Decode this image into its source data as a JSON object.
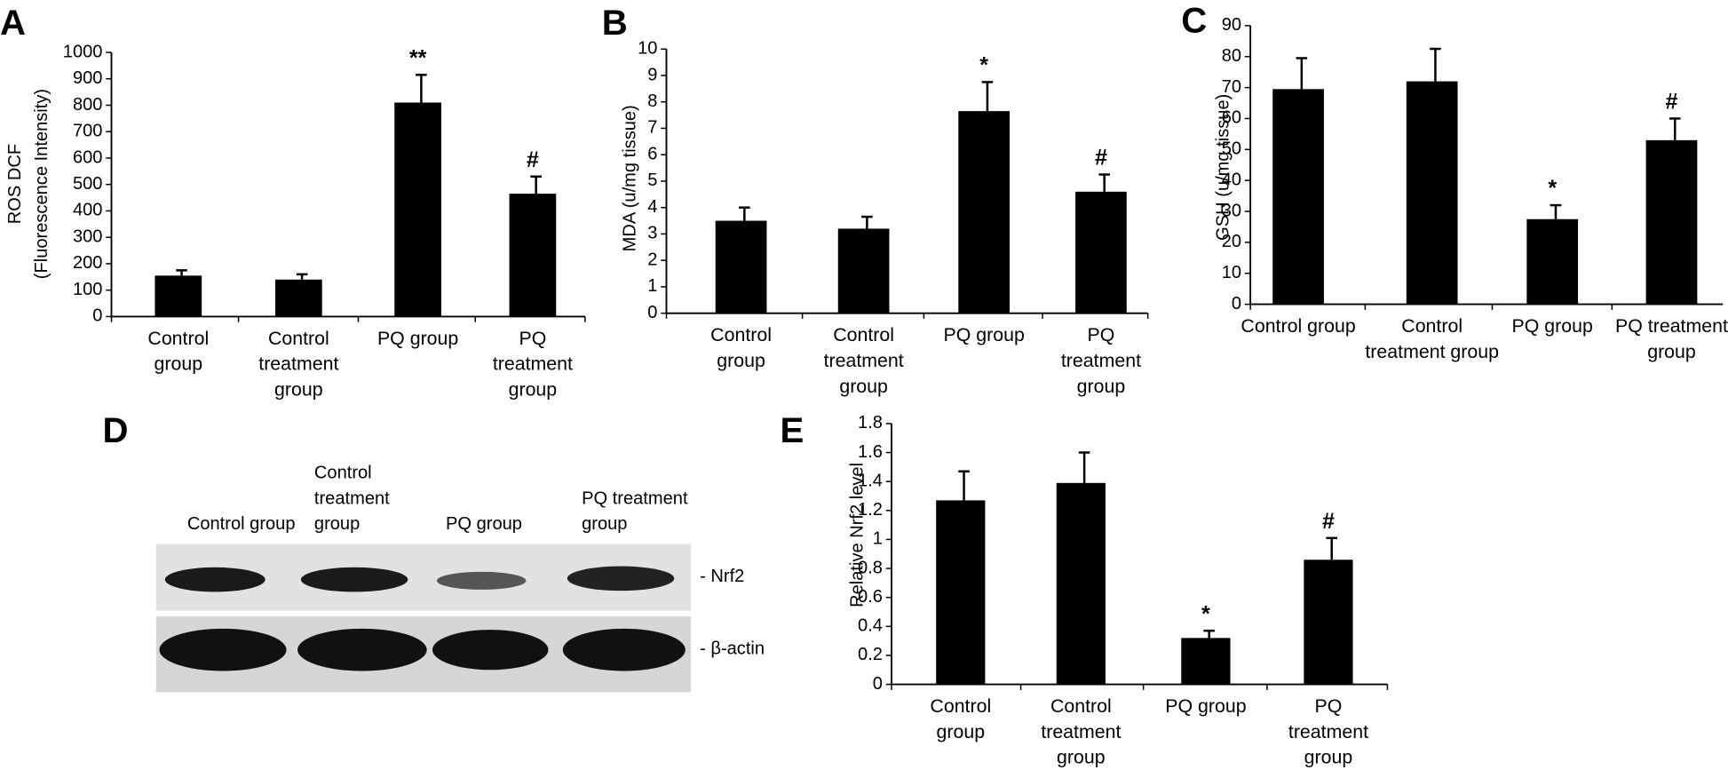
{
  "chart_data": [
    {
      "type": "bar",
      "panel": "A",
      "ylabel": [
        "ROS DCF",
        "(Fluorescence Intensity)"
      ],
      "categories": [
        "Control group",
        "Control treatment group",
        "PQ group",
        "PQ treatment group"
      ],
      "values": [
        155,
        140,
        810,
        465
      ],
      "errors": [
        20,
        20,
        105,
        65
      ],
      "markers": [
        null,
        null,
        "**",
        "#"
      ],
      "color": "#000000",
      "ylim": [
        0,
        1000
      ],
      "yticks": [
        0,
        100,
        200,
        300,
        400,
        500,
        600,
        700,
        800,
        900,
        1000
      ]
    },
    {
      "type": "bar",
      "panel": "B",
      "ylabel": [
        "MDA (u/mg tissue)"
      ],
      "categories": [
        "Control group",
        "Control treatment group",
        "PQ group",
        "PQ treatment group"
      ],
      "values": [
        3.5,
        3.2,
        7.65,
        4.6
      ],
      "errors": [
        0.5,
        0.45,
        1.1,
        0.65
      ],
      "markers": [
        null,
        null,
        "*",
        "#"
      ],
      "color": "#000000",
      "ylim": [
        0,
        10
      ],
      "yticks": [
        0,
        1,
        2,
        3,
        4,
        5,
        6,
        7,
        8,
        9,
        10
      ]
    },
    {
      "type": "bar",
      "panel": "C",
      "ylabel": [
        "GSH (u/mg tissue)"
      ],
      "categories": [
        "Control group",
        "Control treatment group",
        "PQ group",
        "PQ treatment group"
      ],
      "values": [
        69.5,
        72,
        27.5,
        53
      ],
      "errors": [
        10,
        10.5,
        4.5,
        7
      ],
      "markers": [
        null,
        null,
        "*",
        "#"
      ],
      "color": "#000000",
      "ylim": [
        0,
        90
      ],
      "yticks": [
        0,
        10,
        20,
        30,
        40,
        50,
        60,
        70,
        80,
        90
      ]
    },
    {
      "type": "bar",
      "panel": "E",
      "ylabel": [
        "Relative Nrf2 level"
      ],
      "categories": [
        "Control group",
        "Control treatment group",
        "PQ group",
        "PQ treatment group"
      ],
      "values": [
        1.27,
        1.39,
        0.32,
        0.86
      ],
      "errors": [
        0.2,
        0.21,
        0.05,
        0.15
      ],
      "markers": [
        null,
        null,
        "*",
        "#"
      ],
      "color": "#000000",
      "ylim": [
        0,
        1.8
      ],
      "yticks": [
        0,
        0.2,
        0.4,
        0.6,
        0.8,
        1,
        1.2,
        1.4,
        1.6,
        1.8
      ]
    }
  ],
  "blot": {
    "panel": "D",
    "lanes": [
      "Control group",
      "Control treatment group",
      "PQ group",
      "PQ treatment group"
    ],
    "bands": [
      "- Nrf2",
      "- β-actin"
    ]
  }
}
